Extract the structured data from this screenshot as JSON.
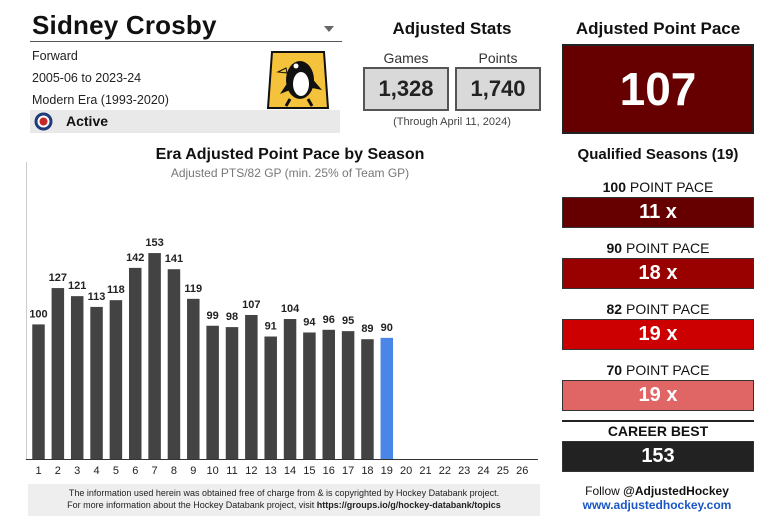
{
  "player": {
    "name": "Sidney Crosby",
    "position": "Forward",
    "seasons": "2005-06 to 2023-24",
    "era": "Modern Era (1993-2020)",
    "status": "Active",
    "team_logo": "penguins-logo-icon",
    "hof_icon": "hockey-hall-of-fame-icon"
  },
  "adjusted_stats": {
    "title": "Adjusted Stats",
    "games_label": "Games",
    "games": "1,328",
    "points_label": "Points",
    "points": "1,740",
    "note": "(Through April 11, 2024)"
  },
  "point_pace": {
    "title": "Adjusted Point Pace",
    "value": "107"
  },
  "qualified": {
    "title": "Qualified Seasons (19)",
    "tiers": [
      {
        "number": "100",
        "suffix": " POINT PACE",
        "value": "11 x",
        "color": "#660000"
      },
      {
        "number": "90",
        "suffix": " POINT PACE",
        "value": "18 x",
        "color": "#990000"
      },
      {
        "number": "82",
        "suffix": " POINT PACE",
        "value": "19 x",
        "color": "#cc0000"
      },
      {
        "number": "70",
        "suffix": " POINT PACE",
        "value": "19 x",
        "color": "#e06666"
      }
    ],
    "career_best_label": "CAREER BEST",
    "career_best": "153",
    "career_best_color": "#222222"
  },
  "chart_data": {
    "type": "bar",
    "title": "Era Adjusted Point Pace by Season",
    "subtitle": "Adjusted PTS/82 GP (min. 25% of Team GP)",
    "categories": [
      "1",
      "2",
      "3",
      "4",
      "5",
      "6",
      "7",
      "8",
      "9",
      "10",
      "11",
      "12",
      "13",
      "14",
      "15",
      "16",
      "17",
      "18",
      "19",
      "20",
      "21",
      "22",
      "23",
      "24",
      "25",
      "26"
    ],
    "values": [
      100,
      127,
      121,
      113,
      118,
      142,
      153,
      141,
      119,
      99,
      98,
      107,
      91,
      104,
      94,
      96,
      95,
      89,
      90,
      null,
      null,
      null,
      null,
      null,
      null,
      null
    ],
    "highlight_index": 18,
    "bar_color": "#434343",
    "highlight_color": "#4a86e8",
    "ylim": [
      0,
      185
    ],
    "grid": false
  },
  "footer": {
    "line1": "The information used herein was obtained free of charge from & is copyrighted by Hockey Databank project.",
    "line2_prefix": "For more information about the Hockey Databank project, visit ",
    "line2_link": "https://groups.io/g/hockey-databank/topics",
    "follow_prefix": "Follow ",
    "follow_handle": "@AdjustedHockey",
    "site": "www.adjustedhockey.com"
  }
}
